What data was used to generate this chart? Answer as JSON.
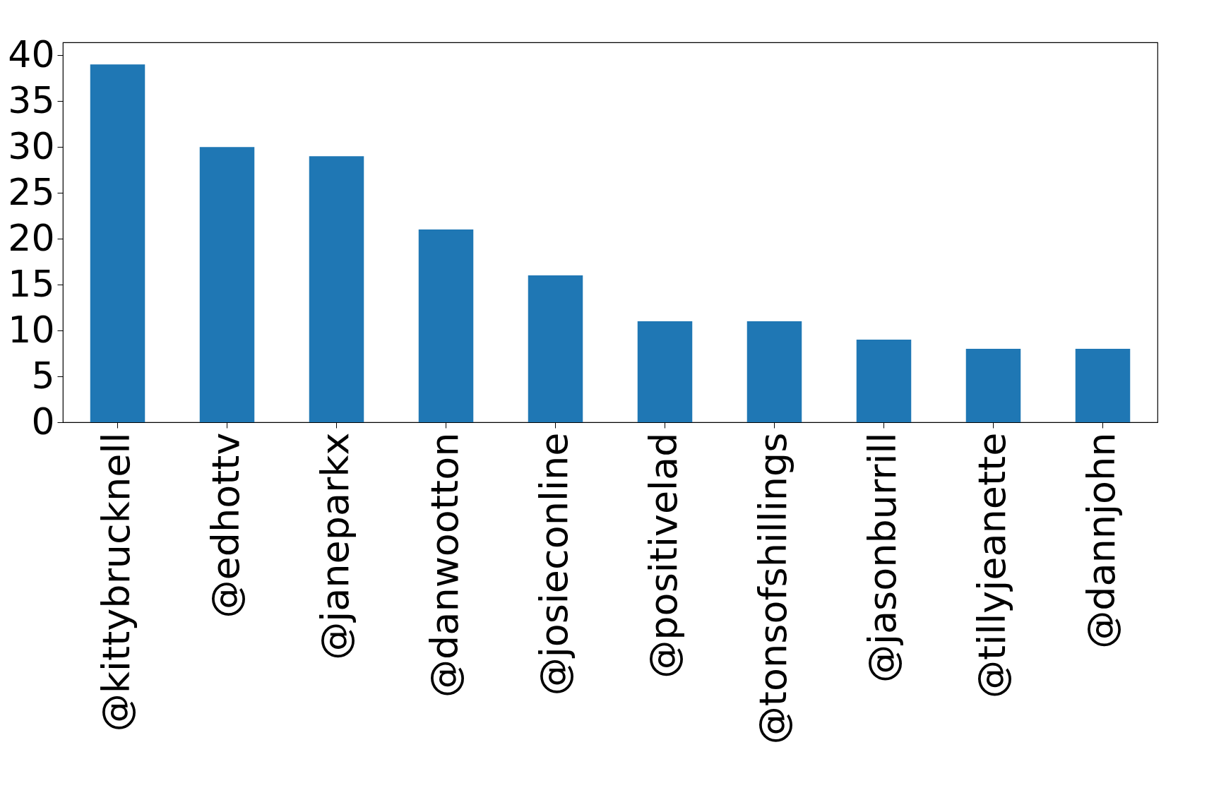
{
  "chart_data": {
    "type": "bar",
    "categories": [
      "@kittybrucknell",
      "@edhottv",
      "@janeparkx",
      "@danwootton",
      "@josieconline",
      "@positivelad",
      "@tonsofshillings",
      "@jasonburrill",
      "@tillyjeanette",
      "@dannjohn"
    ],
    "values": [
      39,
      30,
      29,
      21,
      16,
      11,
      11,
      9,
      8,
      8
    ],
    "color": "#1f77b4",
    "ylim": [
      0,
      41.4
    ],
    "yticks": [
      0,
      5,
      10,
      15,
      20,
      25,
      30,
      35,
      40
    ],
    "grid": false
  }
}
